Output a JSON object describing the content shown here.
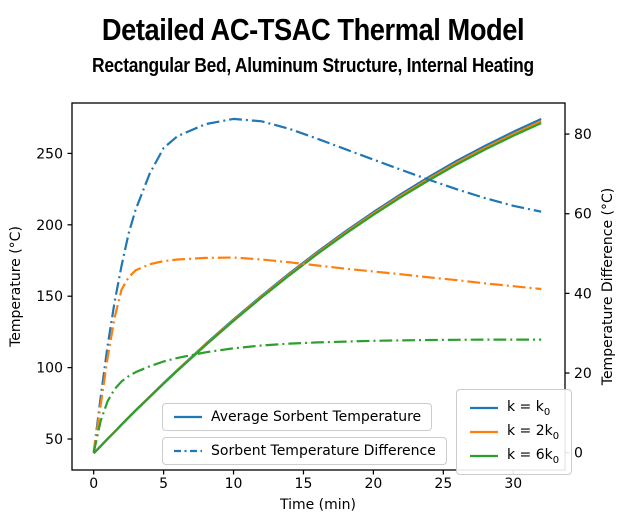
{
  "figure": {
    "title": "Detailed AC-TSAC Thermal Model",
    "subtitle": "Rectangular Bed, Aluminum Structure, Internal Heating",
    "background": "#ffffff"
  },
  "chart_data": {
    "type": "line",
    "title": "Detailed AC-TSAC Thermal Model",
    "subtitle": "Rectangular Bed, Aluminum Structure, Internal Heating",
    "xlabel": "Time (min)",
    "ylabel_left": "Temperature (°C)",
    "ylabel_right": "Temperature Difference (°C)",
    "xlim": [
      -1.55,
      33.7
    ],
    "ylim_left": [
      28.3,
      285.3
    ],
    "ylim_right": [
      -4.35,
      87.8
    ],
    "xticks": [
      0,
      5,
      10,
      15,
      20,
      25,
      30
    ],
    "yticks_left": [
      50,
      100,
      150,
      200,
      250
    ],
    "yticks_right": [
      0,
      20,
      40,
      60,
      80
    ],
    "grid": false,
    "x": [
      0,
      0.5,
      1,
      1.5,
      2,
      2.5,
      3,
      4,
      5,
      6,
      8,
      10,
      12,
      14,
      16,
      18,
      20,
      22,
      24,
      26,
      28,
      30,
      32
    ],
    "series": [
      {
        "name": "avg-sorbent-temp-k0",
        "axis": "left",
        "style": "solid",
        "color": "#1f77b4",
        "values": [
          40,
          45.1,
          50.2,
          55.2,
          60.2,
          65.2,
          70.1,
          79.7,
          89.2,
          98.5,
          116.5,
          133.7,
          150.3,
          166.1,
          181.1,
          195.4,
          208.9,
          221.7,
          233.7,
          245.0,
          255.4,
          265.1,
          274.1
        ]
      },
      {
        "name": "avg-sorbent-temp-2k0",
        "axis": "left",
        "style": "solid",
        "color": "#ff7f0e",
        "values": [
          40,
          45.1,
          50.1,
          55.1,
          60.1,
          65.1,
          70.0,
          79.5,
          89.0,
          98.2,
          116.1,
          133.2,
          149.7,
          165.4,
          180.3,
          194.5,
          207.9,
          220.6,
          232.5,
          243.7,
          254.0,
          263.6,
          272.6
        ]
      },
      {
        "name": "avg-sorbent-temp-6k0",
        "axis": "left",
        "style": "solid",
        "color": "#2ca02c",
        "values": [
          40,
          45.0,
          50.1,
          55.0,
          60.0,
          64.9,
          69.8,
          79.3,
          88.7,
          97.9,
          115.7,
          132.7,
          149.1,
          164.7,
          179.6,
          193.7,
          207.0,
          219.6,
          231.4,
          242.5,
          252.8,
          262.3,
          271.2
        ]
      },
      {
        "name": "sorbent-temp-diff-k0",
        "axis": "right",
        "style": "dashdot",
        "color": "#1f77b4",
        "values": [
          0,
          14,
          27,
          38,
          47,
          55,
          61,
          70,
          76.5,
          79.5,
          82.5,
          83.8,
          83.2,
          81.3,
          78.8,
          76.2,
          73.6,
          71.0,
          68.5,
          66.1,
          63.9,
          62.0,
          60.5
        ]
      },
      {
        "name": "sorbent-temp-diff-2k0",
        "axis": "right",
        "style": "dashdot",
        "color": "#ff7f0e",
        "values": [
          0,
          12,
          24,
          34,
          41,
          44,
          45.8,
          47.3,
          48.1,
          48.5,
          48.9,
          49.0,
          48.5,
          47.8,
          47.0,
          46.2,
          45.5,
          44.8,
          44.0,
          43.3,
          42.5,
          41.8,
          41.1
        ]
      },
      {
        "name": "sorbent-temp-diff-6k0",
        "axis": "right",
        "style": "dashdot",
        "color": "#2ca02c",
        "values": [
          0,
          8,
          13,
          16,
          17.9,
          19.2,
          20.2,
          21.7,
          22.9,
          23.8,
          25.2,
          26.2,
          26.9,
          27.4,
          27.7,
          27.9,
          28.1,
          28.2,
          28.3,
          28.35,
          28.4,
          28.4,
          28.4
        ]
      }
    ],
    "legends": {
      "avg": {
        "label": "Average Sorbent Temperature"
      },
      "diff": {
        "label": "Sorbent Temperature Difference"
      },
      "k": {
        "entries": [
          {
            "text": "k = k",
            "sub": "0"
          },
          {
            "text": "k = 2k",
            "sub": "0"
          },
          {
            "text": "k = 6k",
            "sub": "0"
          }
        ]
      }
    },
    "legend_position": {
      "avg_diff": "lower center",
      "k": "lower right"
    }
  }
}
